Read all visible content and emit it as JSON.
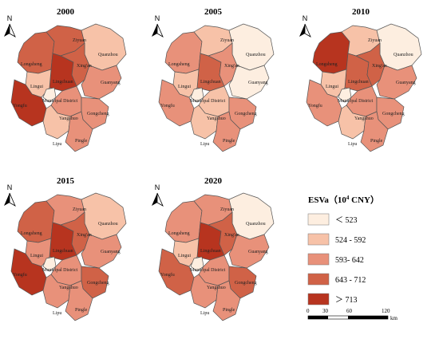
{
  "palette": {
    "c1": "#fdeee0",
    "c2": "#f7c2a8",
    "c3": "#e8917a",
    "c4": "#d06247",
    "c5": "#b7341f"
  },
  "panels": [
    {
      "year": "2000",
      "classes": {
        "Longsheng": 4,
        "Ziyuan": 4,
        "Quanzhou": 2,
        "Lingchuan": 5,
        "Xing'an": 4,
        "Lingui": 2,
        "Municipal District": 1,
        "Guanyang": 3,
        "Yongfu": 5,
        "Yangshuo": 3,
        "Gongcheng": 3,
        "Lipu": 2,
        "Pingle": 3
      }
    },
    {
      "year": "2005",
      "classes": {
        "Longsheng": 3,
        "Ziyuan": 2,
        "Quanzhou": 1,
        "Lingchuan": 4,
        "Xing'an": 3,
        "Lingui": 2,
        "Municipal District": 1,
        "Guanyang": 1,
        "Yongfu": 3,
        "Yangshuo": 2,
        "Gongcheng": 3,
        "Lipu": 2,
        "Pingle": 3
      }
    },
    {
      "year": "2010",
      "classes": {
        "Longsheng": 5,
        "Ziyuan": 2,
        "Quanzhou": 1,
        "Lingchuan": 4,
        "Xing'an": 4,
        "Lingui": 2,
        "Municipal District": 1,
        "Guanyang": 3,
        "Yongfu": 3,
        "Yangshuo": 3,
        "Gongcheng": 3,
        "Lipu": 2,
        "Pingle": 3
      }
    },
    {
      "year": "2015",
      "classes": {
        "Longsheng": 4,
        "Ziyuan": 3,
        "Quanzhou": 2,
        "Lingchuan": 5,
        "Xing'an": 4,
        "Lingui": 3,
        "Municipal District": 1,
        "Guanyang": 3,
        "Yongfu": 5,
        "Yangshuo": 3,
        "Gongcheng": 4,
        "Lipu": 3,
        "Pingle": 3
      }
    },
    {
      "year": "2020",
      "classes": {
        "Longsheng": 3,
        "Ziyuan": 3,
        "Quanzhou": 1,
        "Lingchuan": 5,
        "Xing'an": 4,
        "Lingui": 2,
        "Municipal District": 1,
        "Guanyang": 3,
        "Yongfu": 4,
        "Yangshuo": 3,
        "Gongcheng": 4,
        "Lipu": 3,
        "Pingle": 3
      }
    }
  ],
  "legend": {
    "title": "ESVa（10",
    "title_sup": "4",
    "title_unit": " CNY）",
    "items": [
      {
        "label": "＜ 523",
        "class": 1
      },
      {
        "label": "524 - 592",
        "class": 2
      },
      {
        "label": "593- 642",
        "class": 3
      },
      {
        "label": "643 - 712",
        "class": 4
      },
      {
        "label": "＞ 713",
        "class": 5
      }
    ]
  },
  "scalebar": {
    "ticks": [
      "0",
      "30",
      "60",
      "120"
    ],
    "unit": "km"
  },
  "north_label": "N",
  "north_icon": "north-arrow-icon"
}
